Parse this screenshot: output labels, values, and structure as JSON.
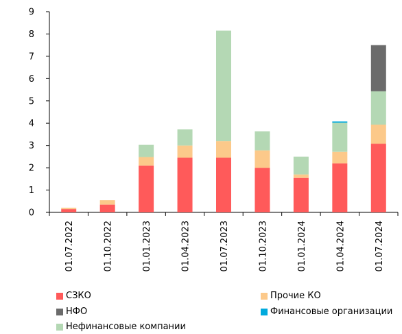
{
  "chart_data": {
    "type": "bar",
    "stacked": true,
    "categories": [
      "01.07.2022",
      "01.10.2022",
      "01.01.2023",
      "01.04.2023",
      "01.07.2023",
      "01.10.2023",
      "01.01.2024",
      "01.04.2024",
      "01.07.2024"
    ],
    "series": [
      {
        "name": "СЗКО",
        "color": "#ff5a5a",
        "values": [
          0.15,
          0.35,
          2.1,
          2.45,
          2.45,
          2.0,
          1.55,
          2.2,
          3.08
        ]
      },
      {
        "name": "Прочие КО",
        "color": "#fcc98a",
        "values": [
          0.05,
          0.2,
          0.38,
          0.55,
          0.75,
          0.78,
          0.15,
          0.52,
          0.85
        ]
      },
      {
        "name": "Нефинансовые компании",
        "color": "#b4d8b4",
        "values": [
          0.0,
          0.0,
          0.55,
          0.72,
          4.95,
          0.85,
          0.8,
          1.3,
          1.5
        ]
      },
      {
        "name": "Финансовые организации",
        "color": "#00aadd",
        "values": [
          0.0,
          0.0,
          0.0,
          0.0,
          0.0,
          0.0,
          0.0,
          0.06,
          0.0
        ]
      },
      {
        "name": "НФО",
        "color": "#6b6b6b",
        "values": [
          0.0,
          0.0,
          0.0,
          0.0,
          0.0,
          0.0,
          0.0,
          0.0,
          2.07
        ]
      }
    ],
    "ylim": [
      0,
      9
    ],
    "yticks": [
      0,
      1,
      2,
      3,
      4,
      5,
      6,
      7,
      8,
      9
    ],
    "grid": false,
    "legend_placement": "bottom",
    "legend_order": [
      "СЗКО",
      "Прочие КО",
      "НФО",
      "Финансовые организации",
      "Нефинансовые компании"
    ],
    "title": "",
    "xlabel": "",
    "ylabel": ""
  }
}
